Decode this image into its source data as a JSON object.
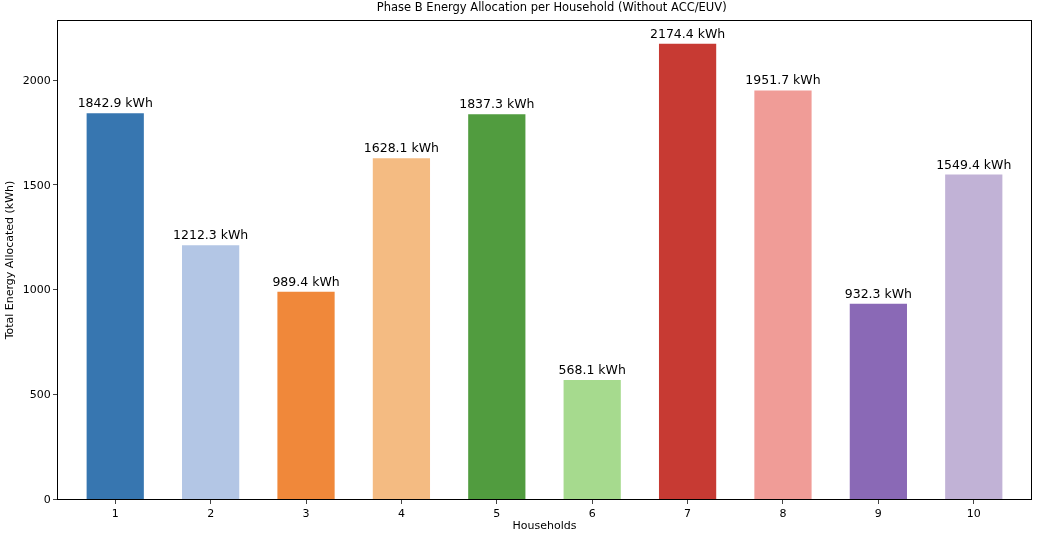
{
  "chart_data": {
    "type": "bar",
    "title": "Phase B Energy Allocation per Household (Without ACC/EUV)",
    "xlabel": "Households",
    "ylabel": "Total Energy Allocated (kWh)",
    "categories": [
      "1",
      "2",
      "3",
      "4",
      "5",
      "6",
      "7",
      "8",
      "9",
      "10"
    ],
    "values": [
      1842.9,
      1212.3,
      989.4,
      1628.1,
      1837.3,
      568.1,
      2174.4,
      1951.7,
      932.3,
      1549.4
    ],
    "value_labels": [
      "1842.9 kWh",
      "1212.3 kWh",
      "989.4 kWh",
      "1628.1 kWh",
      "1837.3 kWh",
      "568.1 kWh",
      "2174.4 kWh",
      "1951.7 kWh",
      "932.3 kWh",
      "1549.4 kWh"
    ],
    "colors": [
      "#3776b0",
      "#b3c6e5",
      "#f0883a",
      "#f4bb82",
      "#519c3f",
      "#a6da8e",
      "#c73a33",
      "#f09c97",
      "#8a69b6",
      "#c1b2d6"
    ],
    "ylim": [
      0,
      2283.1
    ],
    "yticks": [
      0,
      500,
      1000,
      1500,
      2000
    ]
  }
}
